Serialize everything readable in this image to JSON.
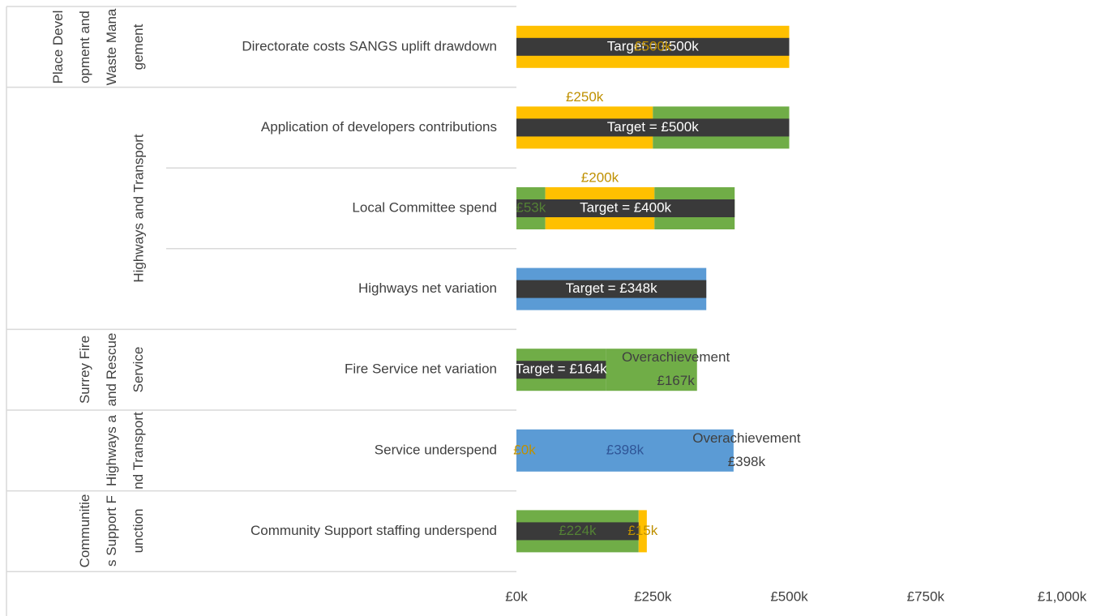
{
  "chart_data": {
    "type": "bar",
    "xlim": [
      0,
      1000
    ],
    "xticks": [
      {
        "value": 0,
        "label": "£0k"
      },
      {
        "value": 250,
        "label": "£250k"
      },
      {
        "value": 500,
        "label": "£500k"
      },
      {
        "value": 750,
        "label": "£750k"
      },
      {
        "value": 1000,
        "label": "£1,000k"
      }
    ],
    "groups": [
      {
        "name": "Place Development and Waste Management",
        "rows": [
          {
            "category": "Directorate costs SANGS uplift drawdown",
            "segments": [
              {
                "value": 500,
                "color": "#ffc000",
                "value_label": "£500k"
              }
            ],
            "target": {
              "value": 500,
              "value_label": "Target =  £500k"
            }
          }
        ]
      },
      {
        "name": "Highways and Transport",
        "rows": [
          {
            "category": "Application of developers contributions",
            "segments": [
              {
                "value": 250,
                "color": "#ffc000",
                "value_label": "£250k"
              },
              {
                "value": 250,
                "color": "#70ad47"
              }
            ],
            "target": {
              "value": 500,
              "value_label": "Target =  £500k"
            }
          },
          {
            "category": "Local Committee spend",
            "segments": [
              {
                "value": 53,
                "color": "#70ad47",
                "value_label": "£53k"
              },
              {
                "value": 200,
                "color": "#ffc000",
                "value_label": "£200k"
              },
              {
                "value": 147,
                "color": "#70ad47"
              }
            ],
            "target": {
              "value": 400,
              "value_label": "Target =  £400k"
            }
          },
          {
            "category": "Highways net variation",
            "segments": [
              {
                "value": 348,
                "color": "#5b9bd5"
              }
            ],
            "target": {
              "value": 348,
              "value_label": "Target =  £348k"
            }
          }
        ]
      },
      {
        "name": "Surrey Fire and Rescue Service",
        "rows": [
          {
            "category": "Fire Service net variation",
            "segments": [
              {
                "value": 164,
                "color": "#70ad47"
              },
              {
                "value": 167,
                "color": "#70ad47",
                "value_label": "Overachievement £167k"
              }
            ],
            "target": {
              "value": 164,
              "value_label": "Target =  £164k"
            }
          }
        ]
      },
      {
        "name": "Highways and Transport",
        "rows": [
          {
            "category": "Service underspend",
            "segments": [
              {
                "value": 0,
                "color": "#ffc000",
                "value_label": "£0k"
              },
              {
                "value": 398,
                "color": "#5b9bd5",
                "value_label": "£398k"
              }
            ],
            "note": "Overachievement £398k"
          }
        ]
      },
      {
        "name": "Communities Support Function",
        "rows": [
          {
            "category": "Community Support staffing underspend",
            "segments": [
              {
                "value": 224,
                "color": "#70ad47",
                "value_label": "£224k"
              },
              {
                "value": 15,
                "color": "#ffc000",
                "value_label": "£15k"
              }
            ],
            "target": {
              "value": 224
            }
          }
        ]
      }
    ]
  }
}
